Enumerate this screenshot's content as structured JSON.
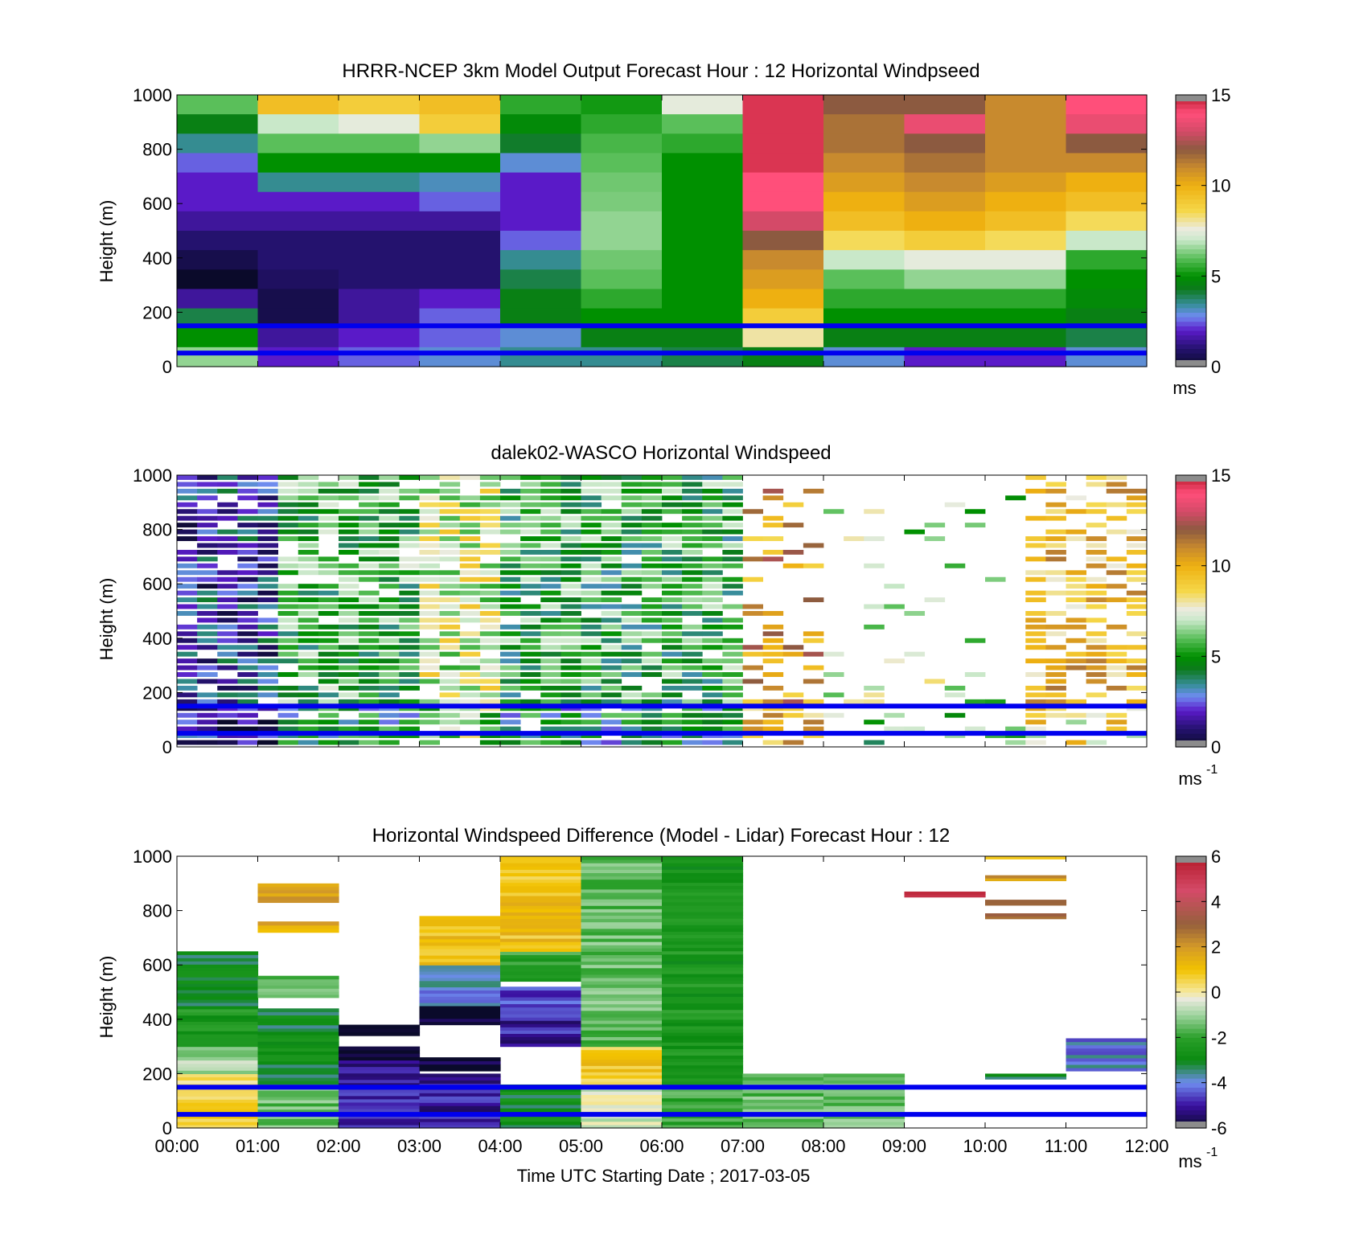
{
  "figure": {
    "background": "#ffffff"
  },
  "chart_data": [
    {
      "type": "heatmap",
      "title": "HRRR-NCEP 3km Model Output   Forecast Hour : 12 Horizontal Windpseed",
      "ylabel": "Height (m)",
      "xlabel": "",
      "ylim": [
        0,
        1000
      ],
      "yticks": [
        "0",
        "200",
        "400",
        "600",
        "800",
        "1000"
      ],
      "xticks": [
        "",
        "",
        "",
        "",
        "",
        "",
        "",
        "",
        "",
        "",
        "",
        "",
        ""
      ],
      "colorbar": {
        "ticks": [
          "0",
          "5",
          "10",
          "15"
        ],
        "unit": "ms",
        "exponent": ""
      },
      "colormap": "speed",
      "range": [
        0,
        15
      ],
      "overlay_lines_m": [
        150,
        50
      ],
      "overlay_color": "#0000ee",
      "columns": [
        {
          "values": [
            6,
            4.5,
            3.5,
            2.5,
            2,
            2,
            1.5,
            1,
            0.5,
            0,
            1.5,
            4,
            5,
            6.5
          ],
          "missing_below": 0
        },
        {
          "values": [
            9.5,
            7,
            6,
            5,
            3.5,
            2,
            1.5,
            1,
            1,
            0.8,
            0.5,
            0.5,
            1.5,
            2
          ],
          "missing_below": 0
        },
        {
          "values": [
            9,
            7.5,
            6,
            5,
            3.5,
            2,
            1.5,
            1,
            1,
            1,
            1.5,
            1.5,
            2,
            2.5
          ],
          "missing_below": 0
        },
        {
          "values": [
            9.5,
            9,
            6.5,
            5,
            3.2,
            2.5,
            1.5,
            1,
            1,
            1,
            2,
            2.5,
            2.5,
            3
          ],
          "missing_below": 0
        },
        {
          "values": [
            5.5,
            4.8,
            4.2,
            3,
            2,
            2,
            2,
            2.5,
            3.5,
            4,
            4.5,
            4.5,
            3,
            3.5
          ],
          "missing_below": 0
        },
        {
          "values": [
            5.2,
            5.5,
            5.8,
            6,
            6.2,
            6.3,
            6.5,
            6.5,
            6.2,
            6,
            5.5,
            5,
            4.5,
            3.5
          ],
          "missing_below": 0
        },
        {
          "values": [
            7.5,
            6,
            5.5,
            5,
            5,
            5,
            5,
            5,
            5,
            5,
            5,
            5,
            4.5,
            4
          ],
          "missing_below": 0
        },
        {
          "values": [
            14.5,
            14.5,
            14.5,
            14.5,
            14,
            14,
            13,
            12,
            11,
            10.5,
            10,
            9,
            8,
            4.5
          ],
          "missing_below": 0
        },
        {
          "values": [
            12,
            11.5,
            11.5,
            11,
            10.5,
            10,
            9.5,
            8.5,
            7,
            6,
            5.5,
            5,
            4.5,
            3
          ],
          "missing_below": 0
        },
        {
          "values": [
            12,
            13.5,
            12,
            11.5,
            11,
            10.5,
            10,
            9,
            7.5,
            6.5,
            5.5,
            5,
            4.5,
            2
          ],
          "missing_below": 0
        },
        {
          "values": [
            11,
            11,
            11,
            11,
            10.5,
            10,
            9.5,
            8.5,
            7.5,
            6.5,
            5.5,
            5,
            4.5,
            2
          ],
          "missing_below": 0
        },
        {
          "values": [
            14,
            13.5,
            12,
            11,
            10,
            9.5,
            8.5,
            7,
            5.5,
            5,
            4.8,
            4.5,
            4,
            3
          ],
          "missing_below": 0
        }
      ]
    },
    {
      "type": "heatmap",
      "title": "dalek02-WASCO  Horizontal Windspeed",
      "ylabel": "Height (m)",
      "xlabel": "",
      "ylim": [
        0,
        1000
      ],
      "yticks": [
        "0",
        "200",
        "400",
        "600",
        "800",
        "1000"
      ],
      "xticks": [
        "",
        "",
        "",
        "",
        "",
        "",
        "",
        "",
        "",
        "",
        "",
        "",
        ""
      ],
      "colorbar": {
        "ticks": [
          "0",
          "5",
          "10",
          "15"
        ],
        "unit": "ms",
        "exponent": "-1"
      },
      "colormap": "speed",
      "range": [
        0,
        15
      ],
      "overlay_lines_m": [
        150,
        50
      ],
      "overlay_color": "#0000ee",
      "time_bins": 48,
      "height_bins": 40
    },
    {
      "type": "heatmap",
      "title": "Horizontal Windspeed Difference (Model - Lidar) Forecast Hour : 12",
      "ylabel": "Height (m)",
      "xlabel": "Time UTC  Starting Date ; 2017-03-05",
      "ylim": [
        0,
        1000
      ],
      "yticks": [
        "0",
        "200",
        "400",
        "600",
        "800",
        "1000"
      ],
      "xticks": [
        "00:00",
        "01:00",
        "02:00",
        "03:00",
        "04:00",
        "05:00",
        "06:00",
        "07:00",
        "08:00",
        "09:00",
        "10:00",
        "11:00",
        "12:00"
      ],
      "colorbar": {
        "ticks": [
          "-6",
          "-4",
          "-2",
          "0",
          "2",
          "4",
          "6"
        ],
        "unit": "ms",
        "exponent": "-1"
      },
      "colormap": "diff",
      "range": [
        -6,
        6
      ],
      "overlay_lines_m": [
        150,
        50
      ],
      "overlay_color": "#0000ee",
      "columns": [
        {
          "segments": [
            [
              0,
              200,
              0.5
            ],
            [
              200,
              300,
              -1
            ],
            [
              300,
              450,
              -2.5
            ],
            [
              450,
              650,
              -3
            ]
          ]
        },
        {
          "segments": [
            [
              0,
              150,
              -1.5
            ],
            [
              150,
              440,
              -3
            ],
            [
              480,
              560,
              -1.5
            ],
            [
              720,
              760,
              1.5
            ],
            [
              830,
              900,
              2
            ]
          ]
        },
        {
          "segments": [
            [
              0,
              250,
              -5
            ],
            [
              250,
              300,
              -6
            ],
            [
              340,
              380,
              -6
            ]
          ]
        },
        {
          "segments": [
            [
              0,
              200,
              -5
            ],
            [
              210,
              260,
              -6
            ],
            [
              380,
              450,
              -6
            ],
            [
              450,
              600,
              -4
            ],
            [
              600,
              780,
              1
            ]
          ]
        },
        {
          "segments": [
            [
              0,
              160,
              -3
            ],
            [
              300,
              420,
              -5
            ],
            [
              420,
              520,
              -4.5
            ],
            [
              540,
              650,
              -2
            ],
            [
              650,
              1000,
              1
            ]
          ]
        },
        {
          "segments": [
            [
              0,
              160,
              -0.5
            ],
            [
              160,
              300,
              0.8
            ],
            [
              300,
              1000,
              -1.5
            ]
          ]
        },
        {
          "segments": [
            [
              0,
              160,
              -2
            ],
            [
              160,
              1000,
              -2.5
            ]
          ]
        },
        {
          "segments": [
            [
              0,
              200,
              -1.5
            ]
          ]
        },
        {
          "segments": [
            [
              0,
              200,
              -1.5
            ]
          ]
        },
        {
          "segments": [
            [
              850,
              870,
              5
            ]
          ]
        },
        {
          "segments": [
            [
              180,
              200,
              -3
            ],
            [
              770,
              790,
              3
            ],
            [
              820,
              840,
              3
            ],
            [
              910,
              930,
              2
            ],
            [
              990,
              1000,
              0.5
            ]
          ]
        },
        {
          "segments": [
            [
              210,
              330,
              -4
            ]
          ]
        }
      ]
    }
  ]
}
